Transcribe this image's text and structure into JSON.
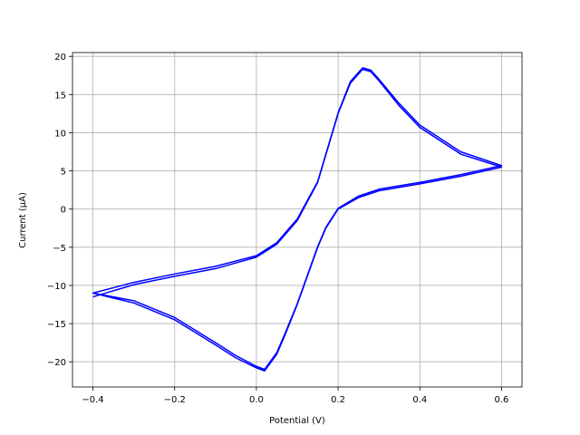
{
  "chart_data": {
    "type": "line",
    "xlabel": "Potential (V)",
    "ylabel": "Current (μA)",
    "color": "#0000ff",
    "grid": true,
    "x": [
      -0.4,
      -0.3,
      -0.2,
      -0.1,
      0,
      0.05,
      0.1,
      0.15,
      0.2,
      0.23,
      0.26,
      0.28,
      0.3,
      0.35,
      0.4,
      0.5,
      0.6,
      0.5,
      0.4,
      0.3,
      0.25,
      0.2,
      0.17,
      0.15,
      0.12,
      0.1,
      0.07,
      0.05,
      0.02,
      0,
      -0.05,
      -0.1,
      -0.2,
      -0.3,
      -0.4,
      -0.3,
      -0.2,
      -0.1,
      0,
      0.05,
      0.1,
      0.15,
      0.2,
      0.23,
      0.26,
      0.28,
      0.3,
      0.35,
      0.4,
      0.5,
      0.6,
      0.5,
      0.4,
      0.3,
      0.25,
      0.2,
      0.17,
      0.15,
      0.12,
      0.1,
      0.07,
      0.05,
      0.02,
      0,
      -0.05,
      -0.1,
      -0.2,
      -0.3,
      -0.4
    ],
    "values": [
      -11.5,
      -9.9,
      -8.8,
      -7.8,
      -6.3,
      -4.6,
      -1.5,
      3.5,
      12.5,
      16.5,
      18.3,
      18,
      16.8,
      13.5,
      10.7,
      7.2,
      5.5,
      4.3,
      3.3,
      2.4,
      1.5,
      0,
      -2.5,
      -5,
      -9.5,
      -12.5,
      -16.5,
      -19,
      -21.2,
      -20.8,
      -19.5,
      -17.8,
      -14.5,
      -12.3,
      -11,
      -9.6,
      -8.5,
      -7.5,
      -6.1,
      -4.4,
      -1.3,
      3.6,
      12.6,
      16.7,
      18.5,
      18.2,
      17,
      13.8,
      11,
      7.5,
      5.7,
      4.5,
      3.5,
      2.6,
      1.7,
      0.1,
      -2.4,
      -4.9,
      -9.4,
      -12.4,
      -16.3,
      -18.8,
      -21,
      -20.6,
      -19.2,
      -17.5,
      -14.2,
      -12,
      -11
    ],
    "xlim": [
      -0.45,
      0.65
    ],
    "xticks": [
      {
        "value": -0.4,
        "label": "−0.4"
      },
      {
        "value": -0.2,
        "label": "−0.2"
      },
      {
        "value": 0,
        "label": "0.0"
      },
      0.2,
      0.4,
      0.6
    ],
    "ylim": [
      -23.3,
      20.5
    ],
    "yticks": [
      {
        "value": -20,
        "label": "−20"
      },
      {
        "value": -15,
        "label": "−15"
      },
      {
        "value": -10,
        "label": "−10"
      },
      {
        "value": -5,
        "label": "−5"
      },
      0,
      5,
      10,
      15,
      20
    ]
  }
}
